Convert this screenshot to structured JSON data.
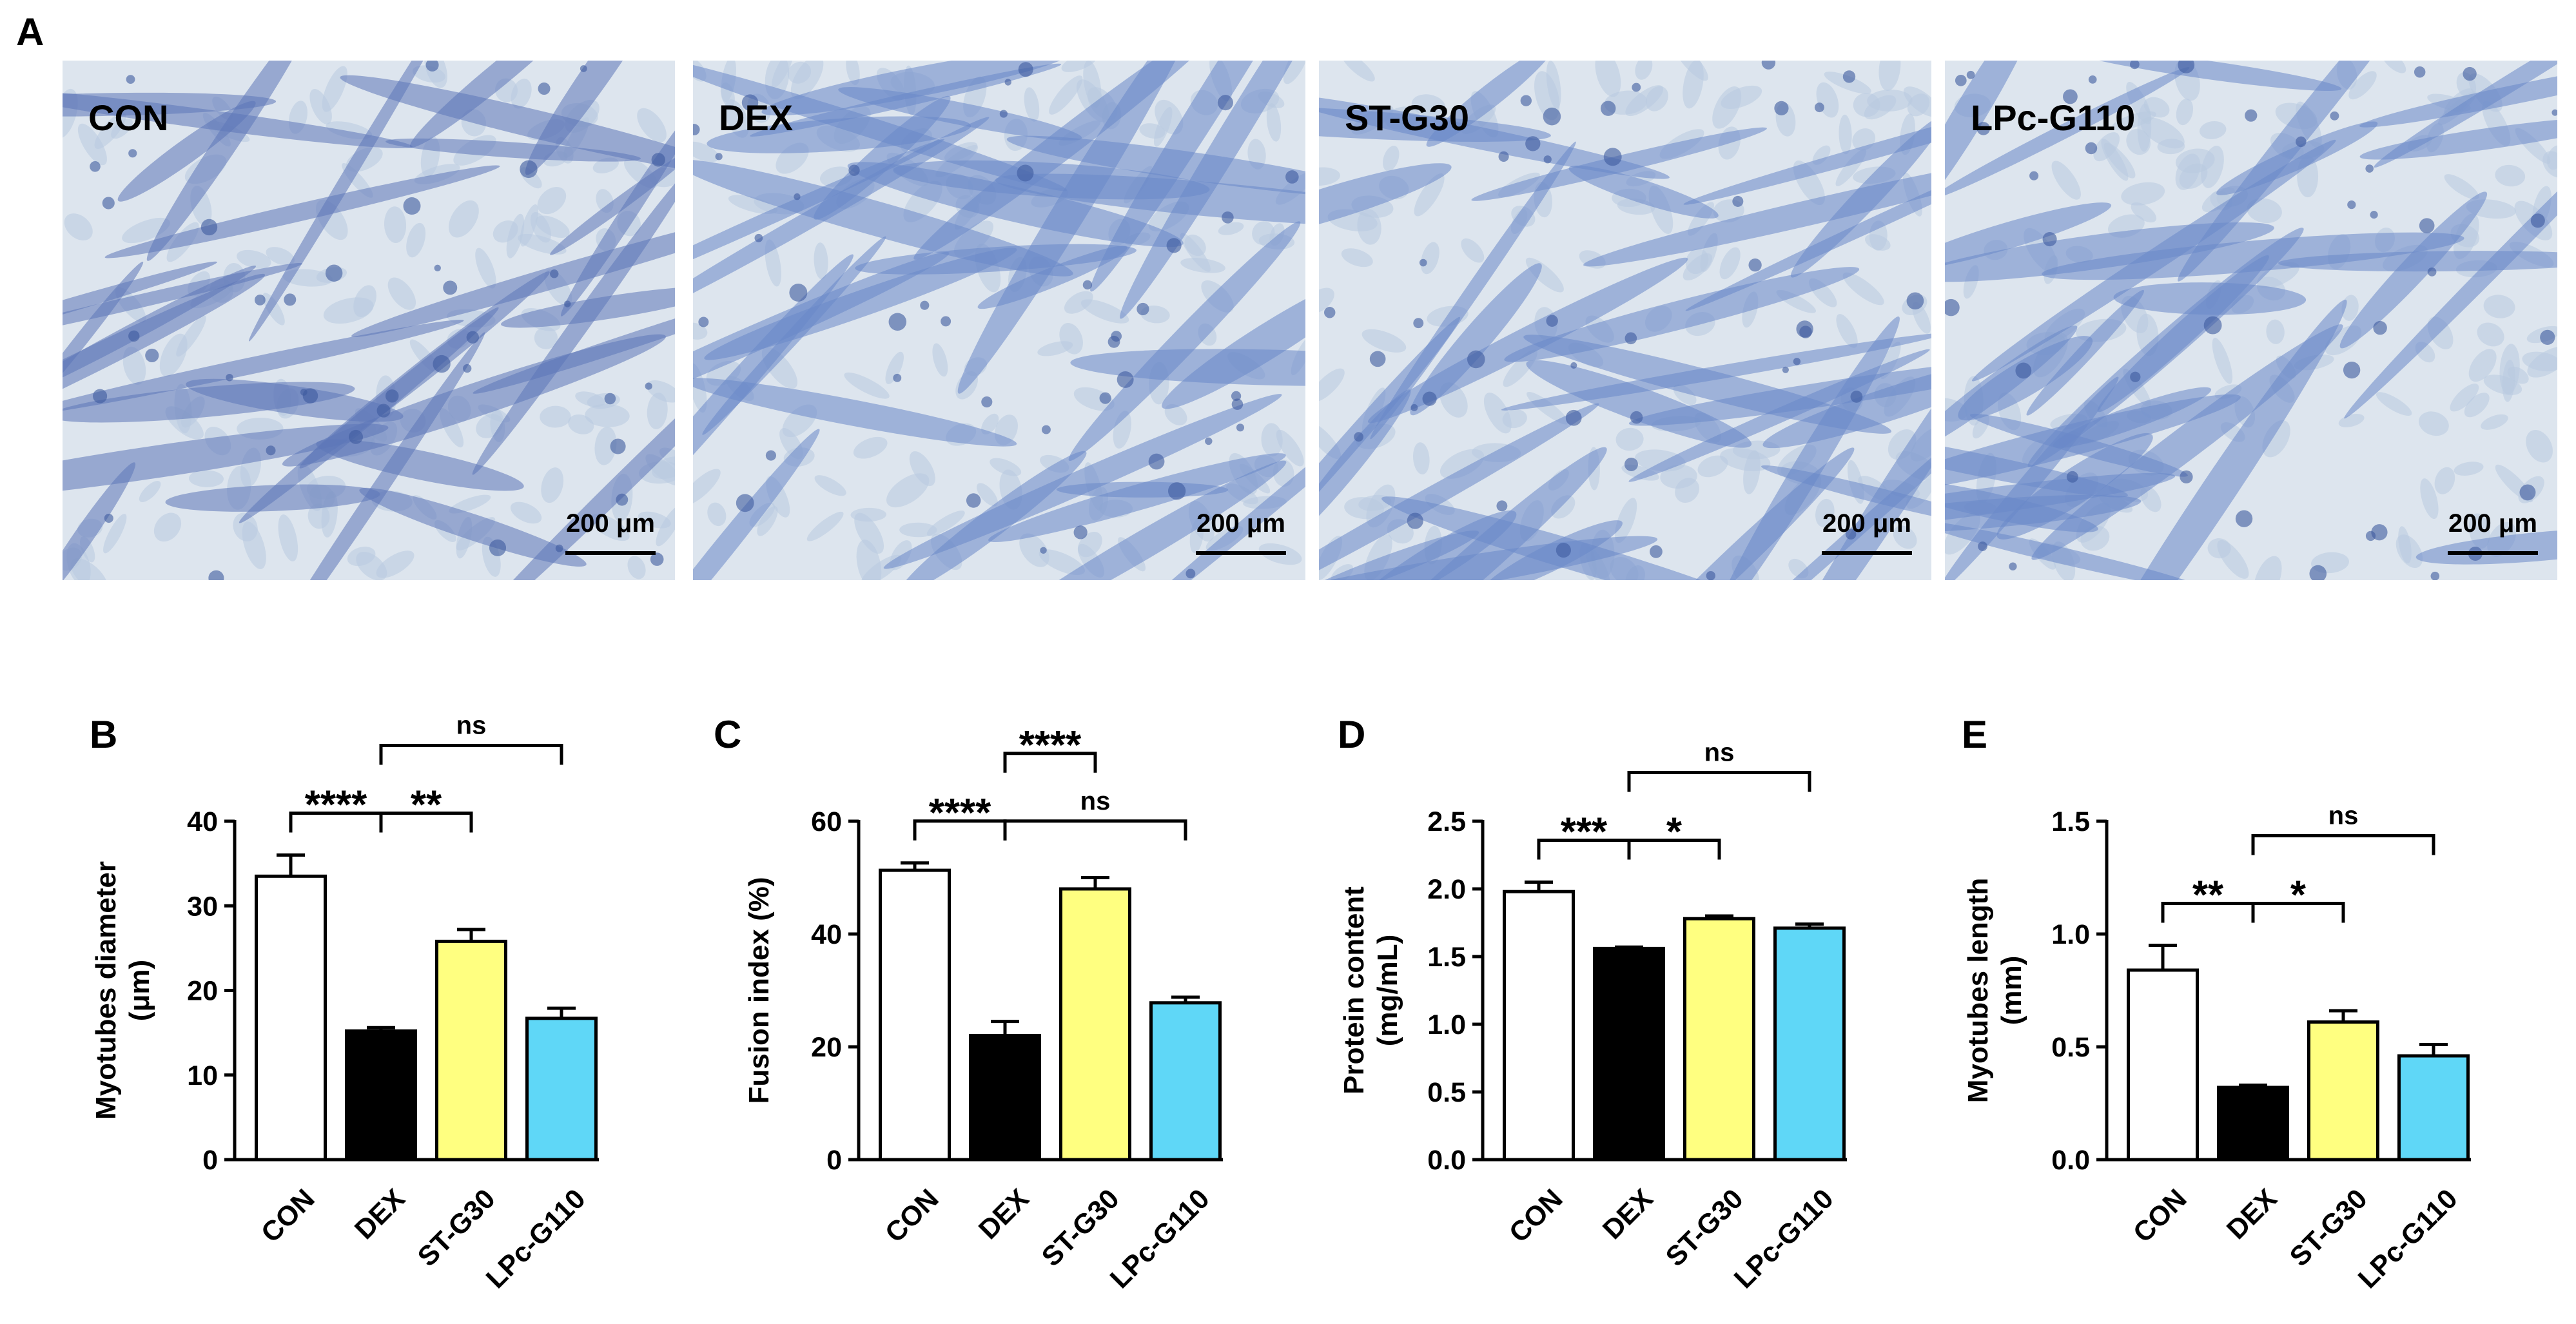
{
  "panel_a": {
    "label": "A",
    "images": [
      {
        "label": "CON",
        "scale_bar": "200 μm"
      },
      {
        "label": "DEX",
        "scale_bar": "200 μm"
      },
      {
        "label": "ST-G30",
        "scale_bar": "200 μm"
      },
      {
        "label": "LPc-G110",
        "scale_bar": "200 μm"
      }
    ]
  },
  "chart_data": [
    {
      "type": "bar",
      "panel_label": "B",
      "ylabel": [
        "Myotubes diameter",
        "(μm)"
      ],
      "categories": [
        "CON",
        "DEX",
        "ST-G30",
        "LPc-G110"
      ],
      "values": [
        33.5,
        15.2,
        25.8,
        16.7
      ],
      "errors": [
        2.5,
        0.4,
        1.4,
        1.2
      ],
      "colors": [
        "#ffffff",
        "#000000",
        "#ffff80",
        "#5fd7f7"
      ],
      "ylim": [
        0,
        40
      ],
      "yticks": [
        0,
        10,
        20,
        30,
        40
      ],
      "significance": [
        {
          "between": [
            "CON",
            "DEX"
          ],
          "label": "****"
        },
        {
          "between": [
            "DEX",
            "ST-G30"
          ],
          "label": "**"
        },
        {
          "between": [
            "DEX",
            "LPc-G110"
          ],
          "label": "ns"
        }
      ]
    },
    {
      "type": "bar",
      "panel_label": "C",
      "ylabel": [
        "Fusion index (%)"
      ],
      "categories": [
        "CON",
        "DEX",
        "ST-G30",
        "LPc-G110"
      ],
      "values": [
        51.3,
        22,
        48,
        27.8
      ],
      "errors": [
        1.3,
        2.5,
        2,
        1
      ],
      "colors": [
        "#ffffff",
        "#000000",
        "#ffff80",
        "#5fd7f7"
      ],
      "ylim": [
        0,
        60
      ],
      "yticks": [
        0,
        20,
        40,
        60
      ],
      "significance": [
        {
          "between": [
            "CON",
            "DEX"
          ],
          "label": "****"
        },
        {
          "between": [
            "DEX",
            "LPc-G110"
          ],
          "label": "ns"
        },
        {
          "between": [
            "DEX",
            "ST-G30"
          ],
          "label": "****"
        }
      ]
    },
    {
      "type": "bar",
      "panel_label": "D",
      "ylabel": [
        "Protein content",
        "(mg/mL)"
      ],
      "categories": [
        "CON",
        "DEX",
        "ST-G30",
        "LPc-G110"
      ],
      "values": [
        1.98,
        1.56,
        1.78,
        1.71
      ],
      "errors": [
        0.07,
        0.01,
        0.02,
        0.03
      ],
      "colors": [
        "#ffffff",
        "#000000",
        "#ffff80",
        "#5fd7f7"
      ],
      "ylim": [
        0,
        2.5
      ],
      "yticks": [
        {
          "value": 0,
          "label": "0.0"
        },
        0.5,
        {
          "value": 1,
          "label": "1.0"
        },
        1.5,
        {
          "value": 2,
          "label": "2.0"
        },
        2.5
      ],
      "significance": [
        {
          "between": [
            "CON",
            "DEX"
          ],
          "label": "***"
        },
        {
          "between": [
            "DEX",
            "ST-G30"
          ],
          "label": "*"
        },
        {
          "between": [
            "DEX",
            "LPc-G110"
          ],
          "label": "ns"
        }
      ]
    },
    {
      "type": "bar",
      "panel_label": "E",
      "ylabel": [
        "Myotubes length",
        "(mm)"
      ],
      "categories": [
        "CON",
        "DEX",
        "ST-G30",
        "LPc-G110"
      ],
      "values": [
        0.84,
        0.32,
        0.61,
        0.46
      ],
      "errors": [
        0.11,
        0.01,
        0.05,
        0.05
      ],
      "colors": [
        "#ffffff",
        "#000000",
        "#ffff80",
        "#5fd7f7"
      ],
      "ylim": [
        0,
        1.5
      ],
      "yticks": [
        {
          "value": 0,
          "label": "0.0"
        },
        0.5,
        {
          "value": 1,
          "label": "1.0"
        },
        1.5
      ],
      "significance": [
        {
          "between": [
            "CON",
            "DEX"
          ],
          "label": "**"
        },
        {
          "between": [
            "DEX",
            "ST-G30"
          ],
          "label": "*"
        },
        {
          "between": [
            "DEX",
            "LPc-G110"
          ],
          "label": "ns"
        }
      ]
    }
  ]
}
